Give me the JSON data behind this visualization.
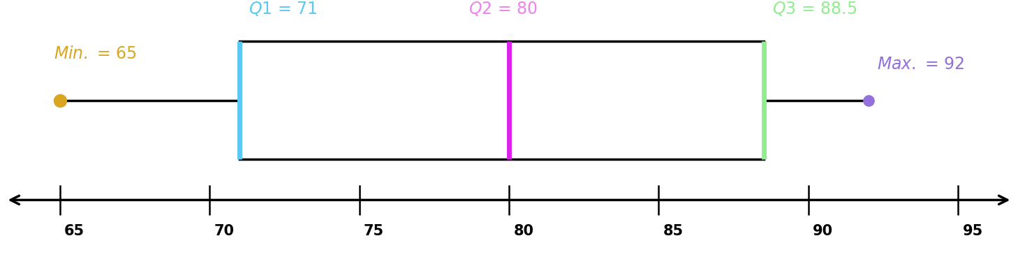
{
  "min_val": 65,
  "q1": 71,
  "q2": 80,
  "q3": 88.5,
  "max_val": 92,
  "data_min": 63,
  "data_max": 97,
  "tick_positions": [
    65,
    70,
    75,
    80,
    85,
    90,
    95
  ],
  "color_q1": "#5bc8f5",
  "color_q2": "#ee82ee",
  "color_q3": "#90ee90",
  "color_min": "#DAA520",
  "color_max": "#9370DB",
  "color_median_line": "#dd22ee",
  "color_whisker": "black",
  "color_box_border": "black",
  "fontsize_labels": 17,
  "fontsize_ticks": 15,
  "background_color": "#ffffff"
}
